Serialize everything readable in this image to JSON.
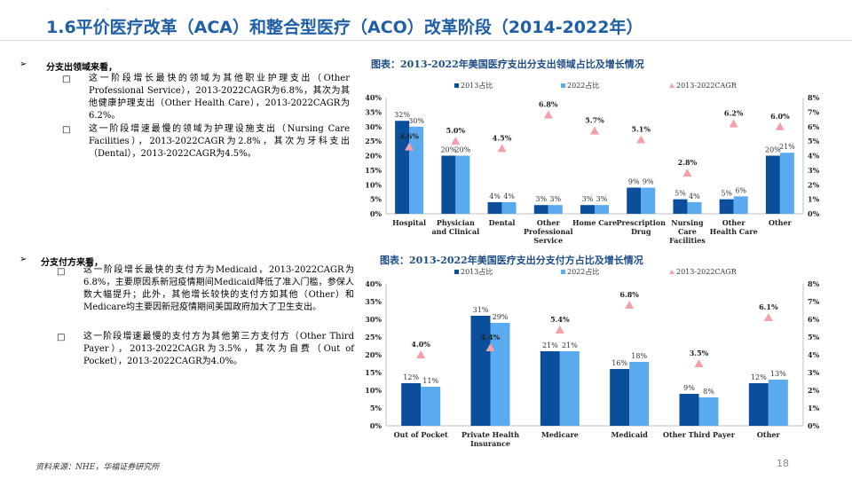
{
  "title": "1.6平价医疗改革（ACA）和整合型医疗（ACO）改革阶段（2014-2022年）",
  "title_dot": "..",
  "section1": {
    "heading": "分支出领域来看，",
    "bullets": [
      "这一阶段增长最快的领域为其他职业护理支出（Other Professional Service），2013-2022CAGR为6.8%，其次为其他健康护理支出（Other Health Care），2013-2022CAGR为6.2%。",
      "这一阶段增速最慢的领域为护理设施支出（Nursing Care Facilities），2013-2022CAGR为2.8%，其次为牙科支出（Dental），2013-2022CAGR为4.5%。"
    ]
  },
  "section2": {
    "heading": "分支付方来看，",
    "bullets": [
      "这一阶段增长最快的支付方为Medicaid，2013-2022CAGR为6.8%，主要原因系新冠疫情期间Medicaid降低了准入门槛，参保人数大幅提升；此外，其他增长较快的支付方如其他（Other）和Medicare均主要因新冠疫情期间美国政府加大了卫生支出。",
      "这一阶段增速最慢的支付方为其他第三方支付方（Other Third Payer），2013-2022CAGR为3.5%，其次为自费（Out of Pocket），2013-2022CAGR为4.0%。"
    ]
  },
  "source": "资料来源：NHE，华福证券研究所",
  "page_number": "18",
  "colors": {
    "dark": "#0b4f9c",
    "light": "#5aaaf0",
    "cagr": "#f5a0a8",
    "title": "#1f5fa8"
  },
  "chart_data": [
    {
      "type": "bar",
      "title": "图表：2013-2022年美国医疗支出分支出领域占比及增长情况",
      "categories": [
        "Hospital",
        "Physician and Clinical",
        "Dental",
        "Other Professional Service",
        "Home Care",
        "Prescription Drug",
        "Nursing Care Facilities",
        "Other Health Care",
        "Other"
      ],
      "category_lines": [
        [
          "Hospital"
        ],
        [
          "Physician",
          "and Clinical"
        ],
        [
          "Dental"
        ],
        [
          "Other",
          "Professional",
          "Service"
        ],
        [
          "Home Care"
        ],
        [
          "Prescription",
          "Drug"
        ],
        [
          "Nursing",
          "Care",
          "Facilities"
        ],
        [
          "Other",
          "Health Care"
        ],
        [
          "Other"
        ]
      ],
      "series": [
        {
          "name": "2013占比",
          "values": [
            32,
            20,
            4,
            3,
            3,
            9,
            5,
            5,
            20
          ],
          "labels": [
            "32%",
            "20%",
            "4%",
            "3%",
            "3%",
            "9%",
            "5%",
            "5%",
            "20%"
          ]
        },
        {
          "name": "2022占比",
          "values": [
            30,
            20,
            4,
            3,
            3,
            9,
            4,
            6,
            21
          ],
          "labels": [
            "30%",
            "20%",
            "4%",
            "3%",
            "3%",
            "9%",
            "4%",
            "6%",
            "21%"
          ]
        }
      ],
      "cagr": {
        "name": "2013-2022CAGR",
        "values": [
          4.6,
          5.0,
          4.5,
          6.8,
          5.7,
          5.1,
          2.8,
          6.2,
          6.0
        ],
        "labels": [
          "4.6%",
          "5.0%",
          "4.5%",
          "6.8%",
          "5.7%",
          "5.1%",
          "2.8%",
          "6.2%",
          "6.0%"
        ]
      },
      "y_left": {
        "min": 0,
        "max": 40,
        "ticks": [
          "0%",
          "5%",
          "10%",
          "15%",
          "20%",
          "25%",
          "30%",
          "35%",
          "40%"
        ]
      },
      "y_right": {
        "min": 0,
        "max": 8,
        "ticks": [
          "0%",
          "1%",
          "2%",
          "3%",
          "4%",
          "5%",
          "6%",
          "7%",
          "8%"
        ]
      },
      "legend": "top"
    },
    {
      "type": "bar",
      "title": "图表：2013-2022年美国医疗支出分支付方占比及增长情况",
      "categories": [
        "Out of Pocket",
        "Private Health Insurance",
        "Medicare",
        "Medicaid",
        "Other Third Payer",
        "Other"
      ],
      "category_lines": [
        [
          "Out of Pocket"
        ],
        [
          "Private Health",
          "Insurance"
        ],
        [
          "Medicare"
        ],
        [
          "Medicaid"
        ],
        [
          "Other Third Payer"
        ],
        [
          "Other"
        ]
      ],
      "series": [
        {
          "name": "2013占比",
          "values": [
            12,
            31,
            21,
            16,
            9,
            12
          ],
          "labels": [
            "12%",
            "31%",
            "21%",
            "16%",
            "9%",
            "12%"
          ]
        },
        {
          "name": "2022占比",
          "values": [
            11,
            29,
            21,
            18,
            8,
            13
          ],
          "labels": [
            "11%",
            "29%",
            "21%",
            "18%",
            "8%",
            "13%"
          ]
        }
      ],
      "cagr": {
        "name": "2013-2022CAGR",
        "values": [
          4.0,
          4.4,
          5.4,
          6.8,
          3.5,
          6.1
        ],
        "labels": [
          "4.0%",
          "4.4%",
          "5.4%",
          "6.8%",
          "3.5%",
          "6.1%"
        ]
      },
      "y_left": {
        "min": 0,
        "max": 40,
        "ticks": [
          "0%",
          "5%",
          "10%",
          "15%",
          "20%",
          "25%",
          "30%",
          "35%",
          "40%"
        ]
      },
      "y_right": {
        "min": 0,
        "max": 8,
        "ticks": [
          "0%",
          "1%",
          "2%",
          "3%",
          "4%",
          "5%",
          "6%",
          "7%",
          "8%"
        ]
      },
      "legend": "top"
    }
  ]
}
